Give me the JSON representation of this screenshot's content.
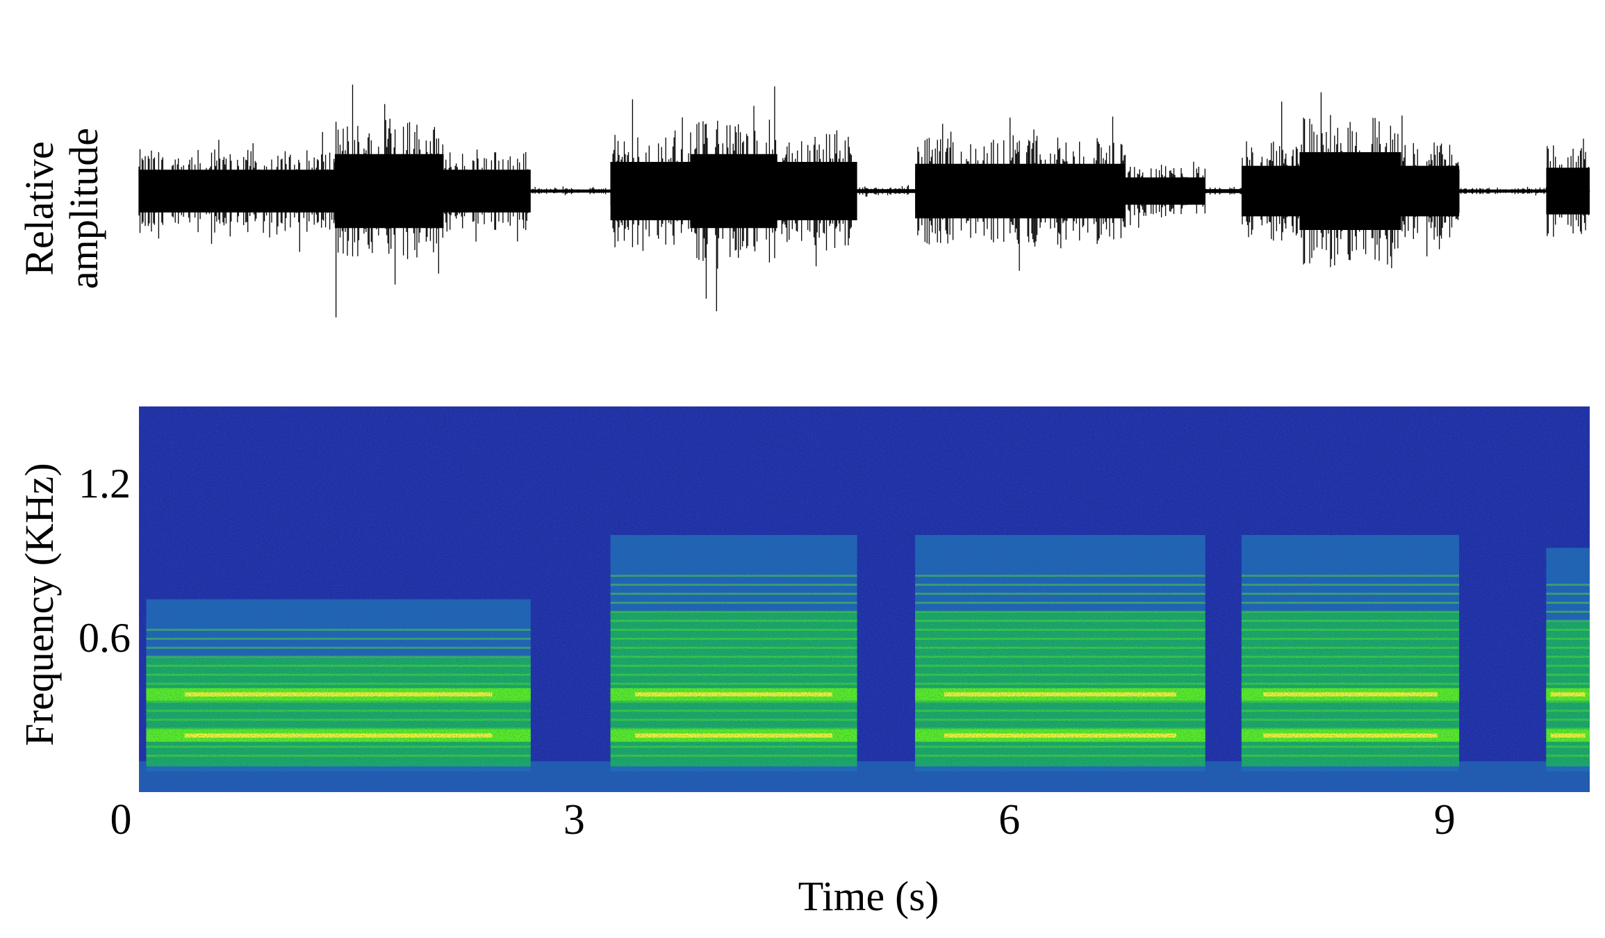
{
  "chart_data": [
    {
      "type": "line",
      "panel": "waveform",
      "ylabel_line1": "Relative",
      "ylabel_line2": "amplitude",
      "xlim": [
        0,
        10
      ],
      "colors": {
        "trace": "#000000"
      },
      "segments": [
        {
          "start": 0.0,
          "end": 2.7,
          "amplitude": 0.55
        },
        {
          "start": 1.35,
          "end": 2.1,
          "amplitude": 0.95
        },
        {
          "start": 2.7,
          "end": 3.25,
          "amplitude": 0.04
        },
        {
          "start": 3.25,
          "end": 4.95,
          "amplitude": 0.75
        },
        {
          "start": 3.8,
          "end": 4.4,
          "amplitude": 0.95
        },
        {
          "start": 4.95,
          "end": 5.35,
          "amplitude": 0.05
        },
        {
          "start": 5.35,
          "end": 6.8,
          "amplitude": 0.7
        },
        {
          "start": 6.8,
          "end": 7.35,
          "amplitude": 0.35
        },
        {
          "start": 7.35,
          "end": 7.6,
          "amplitude": 0.05
        },
        {
          "start": 7.6,
          "end": 9.1,
          "amplitude": 0.65
        },
        {
          "start": 8.0,
          "end": 8.7,
          "amplitude": 1.0
        },
        {
          "start": 9.1,
          "end": 9.7,
          "amplitude": 0.04
        },
        {
          "start": 9.7,
          "end": 10.0,
          "amplitude": 0.6
        }
      ]
    },
    {
      "type": "heatmap",
      "panel": "spectrogram",
      "ylabel": "Frequency (KHz)",
      "xlabel": "Time (s)",
      "xlim": [
        0,
        10
      ],
      "ylim": [
        0,
        1.5
      ],
      "xticks": [
        "0",
        "3",
        "6",
        "9"
      ],
      "xtick_values": [
        0,
        3,
        6,
        9
      ],
      "yticks": [
        "0.6",
        "1.2"
      ],
      "ytick_values": [
        0.6,
        1.2
      ],
      "colors": {
        "background": "#1f30a8",
        "low": "#1f6fb8",
        "mid": "#18c24a",
        "high": "#5af020",
        "peak": "#fff23a"
      },
      "calls": [
        {
          "start": 0.05,
          "end": 2.7,
          "top_freq": 0.75,
          "bands": [
            0.22,
            0.38
          ]
        },
        {
          "start": 3.25,
          "end": 4.95,
          "top_freq": 1.0,
          "bands": [
            0.22,
            0.38
          ]
        },
        {
          "start": 5.35,
          "end": 7.35,
          "top_freq": 1.0,
          "bands": [
            0.22,
            0.38
          ]
        },
        {
          "start": 7.6,
          "end": 9.1,
          "top_freq": 1.0,
          "bands": [
            0.22,
            0.38
          ]
        },
        {
          "start": 9.7,
          "end": 10.0,
          "top_freq": 0.95,
          "bands": [
            0.22,
            0.38
          ]
        }
      ]
    }
  ]
}
